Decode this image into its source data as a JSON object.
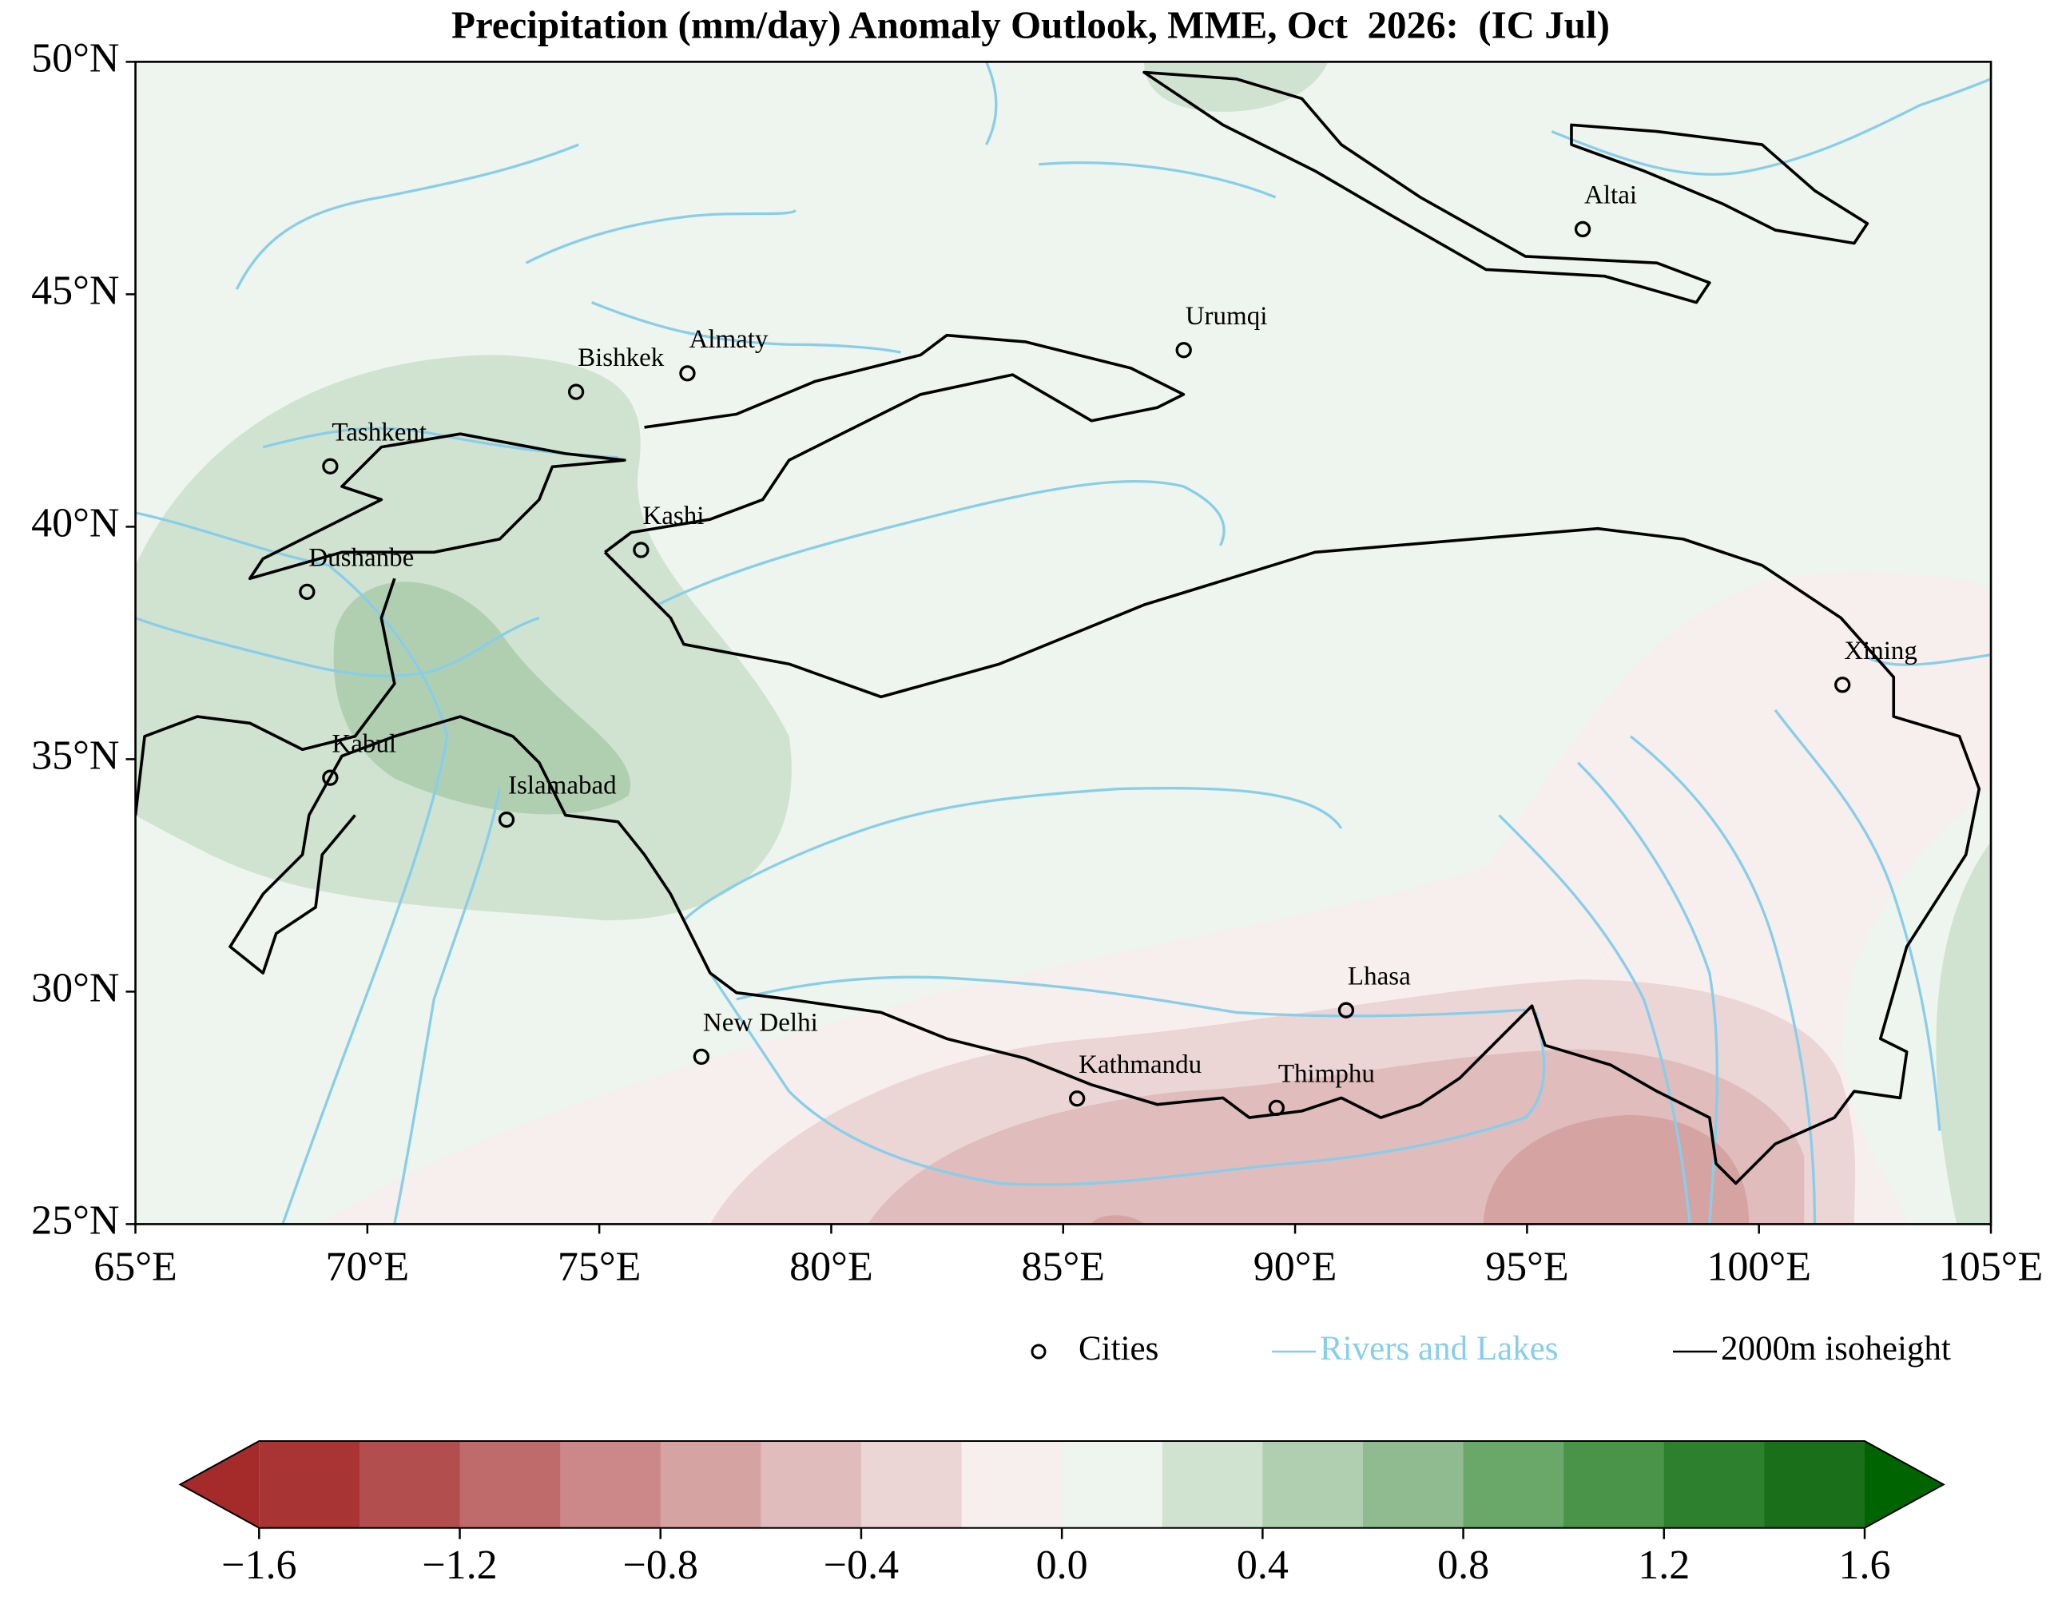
{
  "title": "Precipitation (mm/day) Anomaly Outlook, MME, Oct  2026:  (IC Jul)",
  "map": {
    "lonlim": [
      65,
      105
    ],
    "latlim": [
      25,
      50
    ],
    "lonticks": [
      {
        "value": 65,
        "label": "65°E"
      },
      {
        "value": 70,
        "label": "70°E"
      },
      {
        "value": 75,
        "label": "75°E"
      },
      {
        "value": 80,
        "label": "80°E"
      },
      {
        "value": 85,
        "label": "85°E"
      },
      {
        "value": 90,
        "label": "90°E"
      },
      {
        "value": 95,
        "label": "95°E"
      },
      {
        "value": 100,
        "label": "100°E"
      },
      {
        "value": 105,
        "label": "105°E"
      }
    ],
    "latticks": [
      {
        "value": 25,
        "label": "25°N"
      },
      {
        "value": 30,
        "label": "30°N"
      },
      {
        "value": 35,
        "label": "35°N"
      },
      {
        "value": 40,
        "label": "40°N"
      },
      {
        "value": 45,
        "label": "45°N"
      },
      {
        "value": 50,
        "label": "50°N"
      }
    ],
    "cities": [
      {
        "name": "Altai",
        "lon": 96.2,
        "lat": 46.4
      },
      {
        "name": "Urumqi",
        "lon": 87.6,
        "lat": 43.8
      },
      {
        "name": "Almaty",
        "lon": 76.9,
        "lat": 43.3
      },
      {
        "name": "Bishkek",
        "lon": 74.5,
        "lat": 42.9
      },
      {
        "name": "Tashkent",
        "lon": 69.2,
        "lat": 41.3
      },
      {
        "name": "Kashi",
        "lon": 75.9,
        "lat": 39.5
      },
      {
        "name": "Dushanbe",
        "lon": 68.7,
        "lat": 38.6
      },
      {
        "name": "Xining",
        "lon": 101.8,
        "lat": 36.6
      },
      {
        "name": "Kabul",
        "lon": 69.2,
        "lat": 34.6
      },
      {
        "name": "Islamabad",
        "lon": 73.0,
        "lat": 33.7
      },
      {
        "name": "Lhasa",
        "lon": 91.1,
        "lat": 29.6
      },
      {
        "name": "New Delhi",
        "lon": 77.2,
        "lat": 28.6
      },
      {
        "name": "Kathmandu",
        "lon": 85.3,
        "lat": 27.7
      },
      {
        "name": "Thimphu",
        "lon": 89.6,
        "lat": 27.5
      }
    ]
  },
  "legend": [
    {
      "label": "Cities",
      "color": "#000000",
      "marker": "circle"
    },
    {
      "label": "Rivers and Lakes",
      "color": "#87ceeb",
      "marker": "line"
    },
    {
      "label": "2000m isoheight",
      "color": "#000000",
      "marker": "line"
    }
  ],
  "colorbar": {
    "levels": [
      -1.6,
      -1.4,
      -1.2,
      -1.0,
      -0.8,
      -0.6,
      -0.4,
      -0.2,
      0,
      0.2,
      0.4,
      0.6,
      0.8,
      1.0,
      1.2,
      1.4,
      1.6
    ],
    "colors": [
      "#a93434",
      "#b34e4e",
      "#c06b6b",
      "#cc8888",
      "#d6a3a3",
      "#e0bcbc",
      "#ebd5d5",
      "#f7eeee",
      "#eef4ee",
      "#d0e2d0",
      "#b0cfb0",
      "#90bb90",
      "#6aa86a",
      "#4a944a",
      "#2d802d",
      "#1a6f1a"
    ],
    "under_color": "#a52a2a",
    "over_color": "#006400",
    "ticks": [
      {
        "value": -1.6,
        "label": "−1.6"
      },
      {
        "value": -1.2,
        "label": "−1.2"
      },
      {
        "value": -0.8,
        "label": "−0.8"
      },
      {
        "value": -0.4,
        "label": "−0.4"
      },
      {
        "value": 0,
        "label": "0.0"
      },
      {
        "value": 0.4,
        "label": "0.4"
      },
      {
        "value": 0.8,
        "label": "0.8"
      },
      {
        "value": 1.2,
        "label": "1.2"
      },
      {
        "value": 1.6,
        "label": "1.6"
      }
    ]
  }
}
